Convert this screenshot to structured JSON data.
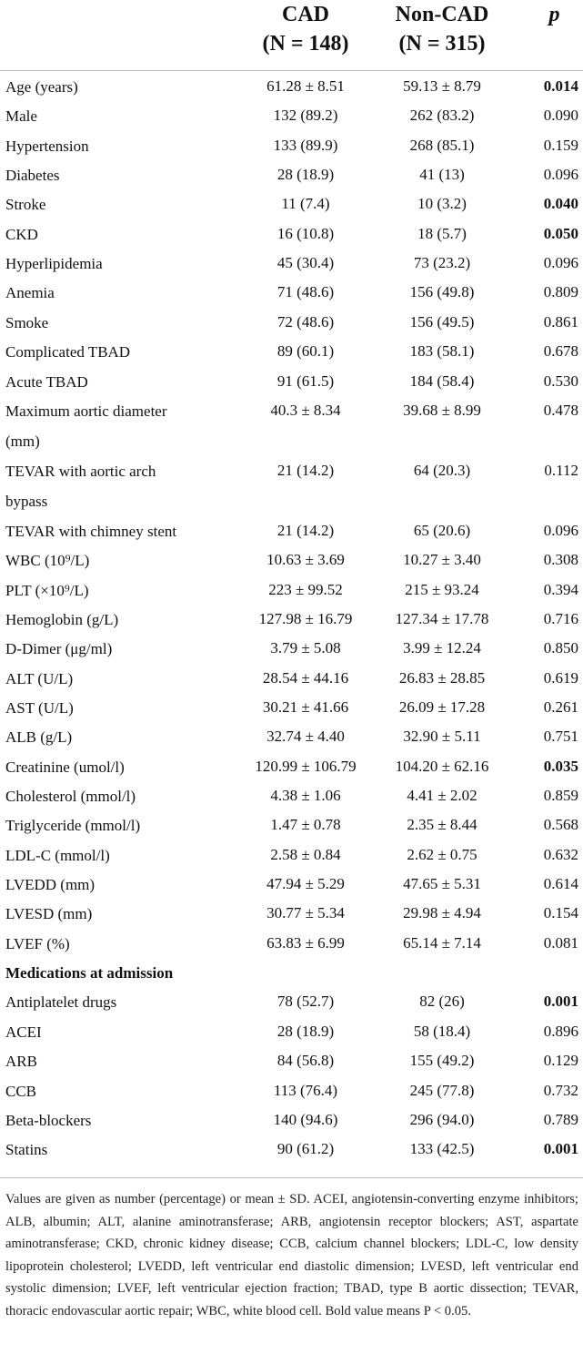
{
  "header": {
    "col1": {
      "name": "CAD",
      "n": "(N = 148)"
    },
    "col2": {
      "name": "Non-CAD",
      "n": "(N = 315)"
    },
    "col3": "p"
  },
  "rows": [
    {
      "label": "Age (years)",
      "cad": "61.28 ± 8.51",
      "noncad": "59.13 ± 8.79",
      "p": "0.014",
      "sig": true
    },
    {
      "label": "Male",
      "cad": "132 (89.2)",
      "noncad": "262 (83.2)",
      "p": "0.090",
      "sig": false
    },
    {
      "label": "Hypertension",
      "cad": "133 (89.9)",
      "noncad": "268 (85.1)",
      "p": "0.159",
      "sig": false
    },
    {
      "label": "Diabetes",
      "cad": "28 (18.9)",
      "noncad": "41 (13)",
      "p": "0.096",
      "sig": false
    },
    {
      "label": "Stroke",
      "cad": "11 (7.4)",
      "noncad": "10 (3.2)",
      "p": "0.040",
      "sig": true
    },
    {
      "label": "CKD",
      "cad": "16 (10.8)",
      "noncad": "18 (5.7)",
      "p": "0.050",
      "sig": true
    },
    {
      "label": "Hyperlipidemia",
      "cad": "45 (30.4)",
      "noncad": "73 (23.2)",
      "p": "0.096",
      "sig": false
    },
    {
      "label": "Anemia",
      "cad": "71 (48.6)",
      "noncad": "156 (49.8)",
      "p": "0.809",
      "sig": false
    },
    {
      "label": "Smoke",
      "cad": "72 (48.6)",
      "noncad": "156 (49.5)",
      "p": "0.861",
      "sig": false
    },
    {
      "label": "Complicated TBAD",
      "cad": "89 (60.1)",
      "noncad": "183 (58.1)",
      "p": "0.678",
      "sig": false
    },
    {
      "label": "Acute TBAD",
      "cad": "91 (61.5)",
      "noncad": "184 (58.4)",
      "p": "0.530",
      "sig": false
    },
    {
      "label": "Maximum aortic diameter",
      "label2": "(mm)",
      "cad": "40.3 ± 8.34",
      "noncad": "39.68 ± 8.99",
      "p": "0.478",
      "sig": false
    },
    {
      "label": "TEVAR with aortic arch",
      "label2": "bypass",
      "cad": "21 (14.2)",
      "noncad": "64 (20.3)",
      "p": "0.112",
      "sig": false
    },
    {
      "label": "TEVAR with chimney stent",
      "cad": "21 (14.2)",
      "noncad": "65 (20.6)",
      "p": "0.096",
      "sig": false
    },
    {
      "label": "WBC (10⁹/L)",
      "cad": "10.63 ± 3.69",
      "noncad": "10.27 ± 3.40",
      "p": "0.308",
      "sig": false
    },
    {
      "label": "PLT (×10⁹/L)",
      "cad": "223 ± 99.52",
      "noncad": "215 ± 93.24",
      "p": "0.394",
      "sig": false
    },
    {
      "label": "Hemoglobin (g/L)",
      "cad": "127.98 ± 16.79",
      "noncad": "127.34 ± 17.78",
      "p": "0.716",
      "sig": false
    },
    {
      "label": "D-Dimer (μg/ml)",
      "cad": "3.79 ± 5.08",
      "noncad": "3.99 ± 12.24",
      "p": "0.850",
      "sig": false
    },
    {
      "label": "ALT (U/L)",
      "cad": "28.54 ± 44.16",
      "noncad": "26.83 ± 28.85",
      "p": "0.619",
      "sig": false
    },
    {
      "label": "AST (U/L)",
      "cad": "30.21 ± 41.66",
      "noncad": "26.09 ± 17.28",
      "p": "0.261",
      "sig": false
    },
    {
      "label": "ALB (g/L)",
      "cad": "32.74 ± 4.40",
      "noncad": "32.90 ± 5.11",
      "p": "0.751",
      "sig": false
    },
    {
      "label": "Creatinine (umol/l)",
      "cad": "120.99 ± 106.79",
      "noncad": "104.20 ± 62.16",
      "p": "0.035",
      "sig": true
    },
    {
      "label": "Cholesterol (mmol/l)",
      "cad": "4.38 ± 1.06",
      "noncad": "4.41 ± 2.02",
      "p": "0.859",
      "sig": false
    },
    {
      "label": "Triglyceride (mmol/l)",
      "cad": "1.47 ± 0.78",
      "noncad": "2.35 ± 8.44",
      "p": "0.568",
      "sig": false
    },
    {
      "label": "LDL-C (mmol/l)",
      "cad": "2.58 ± 0.84",
      "noncad": "2.62 ± 0.75",
      "p": "0.632",
      "sig": false
    },
    {
      "label": "LVEDD (mm)",
      "cad": "47.94 ± 5.29",
      "noncad": "47.65 ± 5.31",
      "p": "0.614",
      "sig": false
    },
    {
      "label": "LVESD (mm)",
      "cad": "30.77 ± 5.34",
      "noncad": "29.98 ± 4.94",
      "p": "0.154",
      "sig": false
    },
    {
      "label": "LVEF (%)",
      "cad": "63.83 ± 6.99",
      "noncad": "65.14 ± 7.14",
      "p": "0.081",
      "sig": false
    },
    {
      "label": "Medications at admission",
      "section": true
    },
    {
      "label": "Antiplatelet drugs",
      "cad": "78 (52.7)",
      "noncad": "82 (26)",
      "p": "0.001",
      "sig": true
    },
    {
      "label": "ACEI",
      "cad": "28 (18.9)",
      "noncad": "58 (18.4)",
      "p": "0.896",
      "sig": false
    },
    {
      "label": "ARB",
      "cad": "84 (56.8)",
      "noncad": "155 (49.2)",
      "p": "0.129",
      "sig": false
    },
    {
      "label": "CCB",
      "cad": "113 (76.4)",
      "noncad": "245 (77.8)",
      "p": "0.732",
      "sig": false
    },
    {
      "label": "Beta-blockers",
      "cad": "140 (94.6)",
      "noncad": "296 (94.0)",
      "p": "0.789",
      "sig": false
    },
    {
      "label": "Statins",
      "cad": "90 (61.2)",
      "noncad": "133 (42.5)",
      "p": "0.001",
      "sig": true
    }
  ],
  "footnote": "Values are given as number (percentage) or mean ± SD. ACEI, angiotensin-converting enzyme inhibitors; ALB, albumin; ALT, alanine aminotransferase; ARB, angiotensin receptor blockers; AST, aspartate aminotransferase; CKD, chronic kidney disease; CCB, calcium channel blockers; LDL-C, low density lipoprotein cholesterol; LVEDD, left ventricular end diastolic dimension; LVESD, left ventricular end systolic dimension; LVEF, left ventricular ejection fraction; TBAD, type B aortic dissection; TEVAR, thoracic endovascular aortic repair; WBC, white blood cell. Bold value means P < 0.05."
}
